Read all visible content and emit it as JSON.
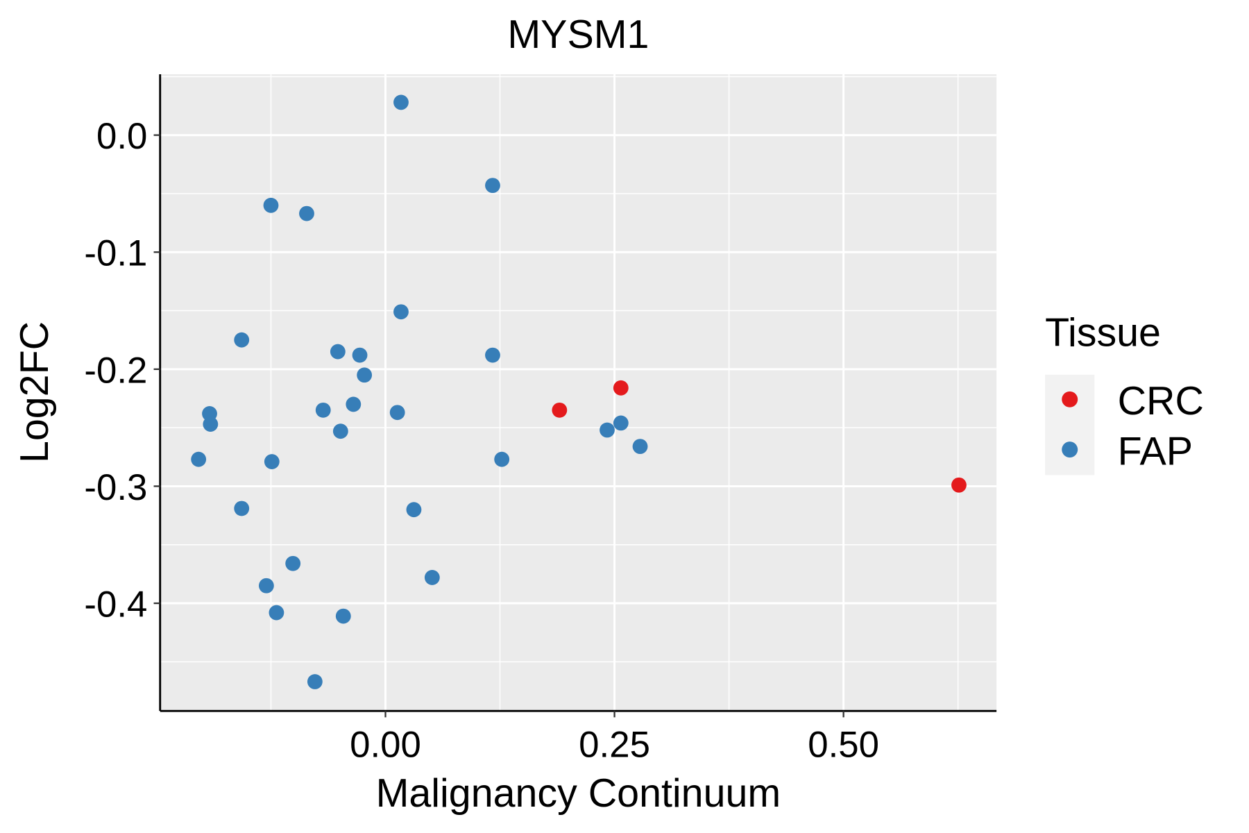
{
  "chart_data": {
    "type": "scatter",
    "title": "MYSM1",
    "xlabel": "Malignancy Continuum",
    "ylabel": "Log2FC",
    "xlim": [
      -0.246,
      0.667
    ],
    "ylim": [
      -0.492,
      0.052
    ],
    "xticks": [
      0.0,
      0.25,
      0.5
    ],
    "xtick_labels": [
      "0.00",
      "0.25",
      "0.50"
    ],
    "yticks": [
      0.0,
      -0.1,
      -0.2,
      -0.3,
      -0.4
    ],
    "ytick_labels": [
      "0.0",
      "-0.1",
      "-0.2",
      "-0.3",
      "-0.4"
    ],
    "grid": true,
    "legend": {
      "title": "Tissue",
      "placement": "right"
    },
    "series": [
      {
        "name": "CRC",
        "color": "#E41A1C",
        "points": [
          [
            0.19,
            -0.235
          ],
          [
            0.257,
            -0.216
          ],
          [
            0.626,
            -0.299
          ]
        ]
      },
      {
        "name": "FAP",
        "color": "#377EB8",
        "points": [
          [
            0.017,
            0.028
          ],
          [
            0.117,
            -0.043
          ],
          [
            -0.125,
            -0.06
          ],
          [
            -0.086,
            -0.067
          ],
          [
            0.017,
            -0.151
          ],
          [
            -0.157,
            -0.175
          ],
          [
            -0.052,
            -0.185
          ],
          [
            -0.028,
            -0.188
          ],
          [
            0.117,
            -0.188
          ],
          [
            -0.023,
            -0.205
          ],
          [
            -0.192,
            -0.238
          ],
          [
            -0.191,
            -0.247
          ],
          [
            -0.068,
            -0.235
          ],
          [
            -0.035,
            -0.23
          ],
          [
            0.013,
            -0.237
          ],
          [
            -0.049,
            -0.253
          ],
          [
            -0.204,
            -0.277
          ],
          [
            -0.124,
            -0.279
          ],
          [
            0.127,
            -0.277
          ],
          [
            -0.157,
            -0.319
          ],
          [
            0.031,
            -0.32
          ],
          [
            -0.101,
            -0.366
          ],
          [
            -0.13,
            -0.385
          ],
          [
            0.051,
            -0.378
          ],
          [
            -0.119,
            -0.408
          ],
          [
            -0.046,
            -0.411
          ],
          [
            -0.077,
            -0.467
          ],
          [
            0.242,
            -0.252
          ],
          [
            0.257,
            -0.246
          ],
          [
            0.278,
            -0.266
          ]
        ]
      }
    ]
  }
}
